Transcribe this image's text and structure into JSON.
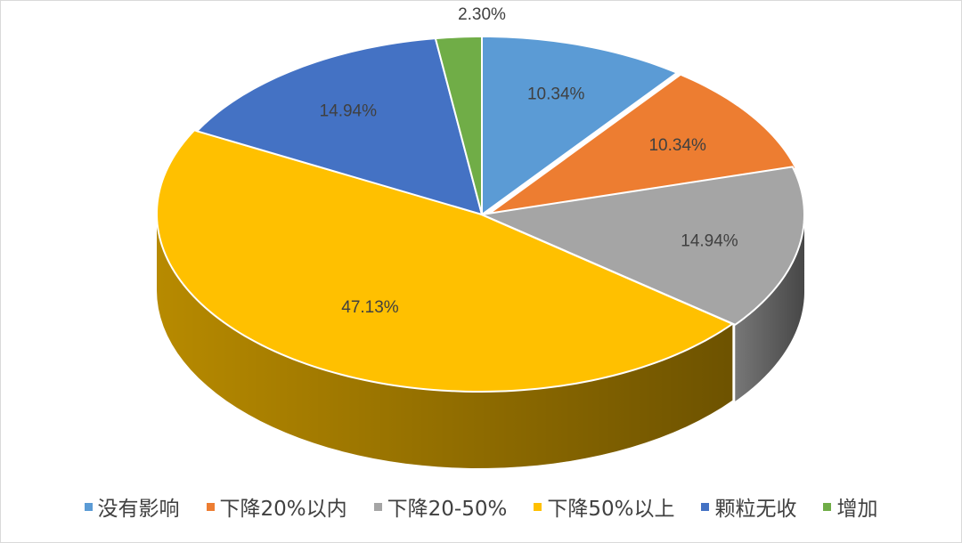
{
  "chart_data": {
    "type": "pie",
    "style": "3d-exploded",
    "categories": [
      "没有影响",
      "下降20%以内",
      "下降20-50%",
      "下降50%以上",
      "颗粒无收",
      "增加"
    ],
    "values": [
      10.34,
      10.34,
      14.94,
      47.13,
      14.94,
      2.3
    ],
    "data_labels": [
      "10.34%",
      "10.34%",
      "14.94%",
      "47.13%",
      "14.94%",
      "2.30%"
    ],
    "colors": [
      "#5B9BD5",
      "#ED7D31",
      "#A5A5A5",
      "#FFC000",
      "#4472C4",
      "#70AD47"
    ],
    "legend_position": "bottom",
    "start_angle_deg": 0,
    "direction": "clockwise"
  }
}
